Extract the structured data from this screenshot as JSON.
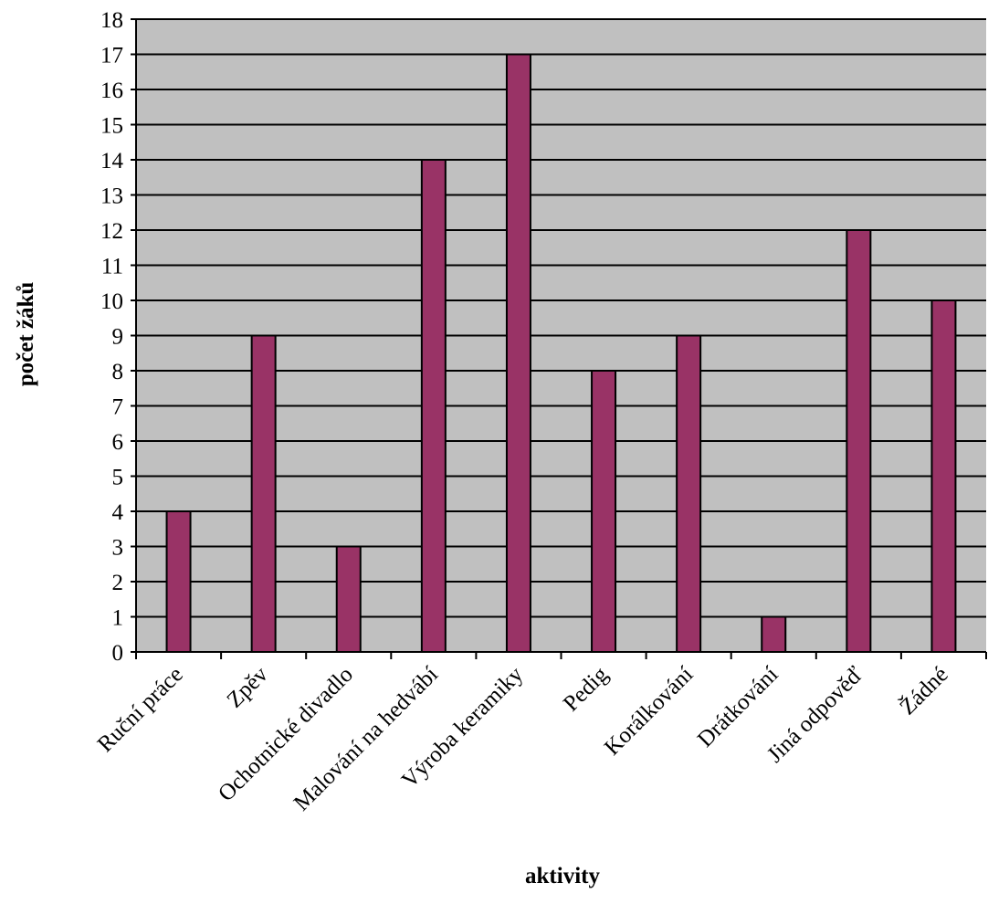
{
  "chart_data": {
    "type": "bar",
    "title": "",
    "xlabel": "aktivity",
    "ylabel": "počet žáků",
    "ylim": [
      0,
      18
    ],
    "y_ticks": [
      "0",
      "1",
      "2",
      "3",
      "4",
      "5",
      "6",
      "7",
      "8",
      "9",
      "10",
      "11",
      "12",
      "13",
      "14",
      "15",
      "16",
      "17",
      "18"
    ],
    "categories": [
      "Ruční práce",
      "Zpěv",
      "Ochotnické divadlo",
      "Malování na hedvábí",
      "Výroba keramiky",
      "Pedig",
      "Korálkování",
      "Drátkování",
      "Jiná odpověď",
      "Žádné"
    ],
    "values": [
      4,
      9,
      3,
      14,
      17,
      8,
      9,
      1,
      12,
      10
    ],
    "grid": true,
    "legend": "none",
    "colors": {
      "plot_background": "#c0c0c0",
      "bar_fill": "#993366",
      "bar_stroke": "#000000",
      "gridline": "#000000"
    }
  }
}
